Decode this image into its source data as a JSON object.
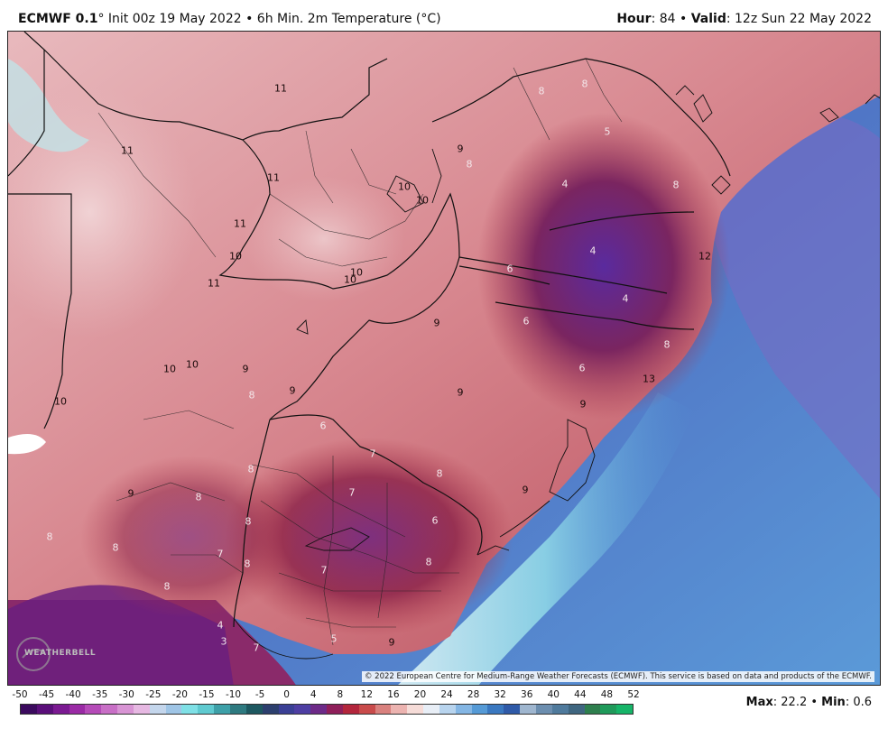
{
  "header": {
    "model": "ECMWF 0.1",
    "degree_symbol": "°",
    "init_text": " Init 00z 19 May 2022 • 6h Min. 2m Temperature (°C)",
    "hour_label": "Hour",
    "hour_value": ": 84 • ",
    "valid_label": "Valid",
    "valid_value": ": 12z Sun 22 May 2022"
  },
  "map": {
    "copyright": "© 2022 European Centre for Medium-Range Weather Forecasts (ECMWF). This service is based on data and products of the ECMWF.",
    "logo_text": "WEATHERBELL",
    "labels": [
      {
        "text": "11",
        "tone": "dark",
        "pos": "lbl-1"
      },
      {
        "text": "11",
        "tone": "dark",
        "pos": "lbl-2"
      },
      {
        "text": "11",
        "tone": "dark",
        "pos": "lbl-3"
      },
      {
        "text": "11",
        "tone": "dark",
        "pos": "lbl-4"
      },
      {
        "text": "11",
        "tone": "dark",
        "pos": "lbl-5"
      },
      {
        "text": "10",
        "tone": "dark",
        "pos": "lbl-6"
      },
      {
        "text": "10",
        "tone": "dark",
        "pos": "lbl-7"
      },
      {
        "text": "10",
        "tone": "dark",
        "pos": "lbl-8"
      },
      {
        "text": "10",
        "tone": "dark",
        "pos": "lbl-9"
      },
      {
        "text": "10",
        "tone": "dark",
        "pos": "lbl-10"
      },
      {
        "text": "10",
        "tone": "dark",
        "pos": "lbl-11"
      },
      {
        "text": "10",
        "tone": "dark",
        "pos": "lbl-12"
      },
      {
        "text": "10",
        "tone": "dark",
        "pos": "lbl-13"
      },
      {
        "text": "9",
        "tone": "dark",
        "pos": "lbl-14"
      },
      {
        "text": "9",
        "tone": "dark",
        "pos": "lbl-15"
      },
      {
        "text": "9",
        "tone": "dark",
        "pos": "lbl-16"
      },
      {
        "text": "9",
        "tone": "dark",
        "pos": "lbl-17"
      },
      {
        "text": "9",
        "tone": "dark",
        "pos": "lbl-18"
      },
      {
        "text": "9",
        "tone": "dark",
        "pos": "lbl-19"
      },
      {
        "text": "9",
        "tone": "dark",
        "pos": "lbl-20"
      },
      {
        "text": "9",
        "tone": "dark",
        "pos": "lbl-21"
      },
      {
        "text": "8",
        "tone": "light",
        "pos": "lbl-22"
      },
      {
        "text": "8",
        "tone": "light",
        "pos": "lbl-23"
      },
      {
        "text": "8",
        "tone": "light",
        "pos": "lbl-24"
      },
      {
        "text": "8",
        "tone": "light",
        "pos": "lbl-25"
      },
      {
        "text": "8",
        "tone": "light",
        "pos": "lbl-26"
      },
      {
        "text": "8",
        "tone": "light",
        "pos": "lbl-27"
      },
      {
        "text": "8",
        "tone": "light",
        "pos": "lbl-28"
      },
      {
        "text": "8",
        "tone": "light",
        "pos": "lbl-29"
      },
      {
        "text": "8",
        "tone": "light",
        "pos": "lbl-30"
      },
      {
        "text": "8",
        "tone": "light",
        "pos": "lbl-31"
      },
      {
        "text": "8",
        "tone": "light",
        "pos": "lbl-32"
      },
      {
        "text": "8",
        "tone": "light",
        "pos": "lbl-33"
      },
      {
        "text": "8",
        "tone": "light",
        "pos": "lbl-34"
      },
      {
        "text": "8",
        "tone": "light",
        "pos": "lbl-35"
      },
      {
        "text": "8",
        "tone": "light",
        "pos": "lbl-36"
      },
      {
        "text": "7",
        "tone": "light",
        "pos": "lbl-37"
      },
      {
        "text": "7",
        "tone": "light",
        "pos": "lbl-38"
      },
      {
        "text": "7",
        "tone": "light",
        "pos": "lbl-39"
      },
      {
        "text": "7",
        "tone": "light",
        "pos": "lbl-40"
      },
      {
        "text": "7",
        "tone": "light",
        "pos": "lbl-41"
      },
      {
        "text": "6",
        "tone": "light",
        "pos": "lbl-42"
      },
      {
        "text": "6",
        "tone": "light",
        "pos": "lbl-43"
      },
      {
        "text": "6",
        "tone": "light",
        "pos": "lbl-44"
      },
      {
        "text": "6",
        "tone": "light",
        "pos": "lbl-45"
      },
      {
        "text": "6",
        "tone": "light",
        "pos": "lbl-46"
      },
      {
        "text": "5",
        "tone": "light",
        "pos": "lbl-47"
      },
      {
        "text": "5",
        "tone": "light",
        "pos": "lbl-48"
      },
      {
        "text": "4",
        "tone": "light",
        "pos": "lbl-49"
      },
      {
        "text": "4",
        "tone": "light",
        "pos": "lbl-50"
      },
      {
        "text": "4",
        "tone": "light",
        "pos": "lbl-51"
      },
      {
        "text": "4",
        "tone": "light",
        "pos": "lbl-52"
      },
      {
        "text": "3",
        "tone": "light",
        "pos": "lbl-53"
      },
      {
        "text": "13",
        "tone": "dark",
        "pos": "lbl-54"
      },
      {
        "text": "12",
        "tone": "dark",
        "pos": "lbl-55"
      },
      {
        "text": "9",
        "tone": "dark",
        "pos": "lbl-56"
      }
    ]
  },
  "colorbar": {
    "ticks": [
      "-50",
      "-45",
      "-40",
      "-35",
      "-30",
      "-25",
      "-20",
      "-15",
      "-10",
      "-5",
      "0",
      "4",
      "8",
      "12",
      "16",
      "20",
      "24",
      "28",
      "32",
      "36",
      "40",
      "44",
      "48",
      "52"
    ],
    "colors": [
      "#3b0a5e",
      "#5a0f7a",
      "#7b1a92",
      "#9a2aa5",
      "#b54bb8",
      "#c86fc6",
      "#d894d4",
      "#e6b8e2",
      "#c4d6ec",
      "#9fc5e6",
      "#7fe0e6",
      "#5fcad0",
      "#3da0a8",
      "#2e7a80",
      "#1d5860",
      "#2c3f6e",
      "#3a3f95",
      "#4e3ea3",
      "#6d2a88",
      "#8f1f5a",
      "#b3263c",
      "#c94b4b",
      "#d9817e",
      "#ecb3b0",
      "#f6dcd8",
      "#e8eef6",
      "#b8d4ee",
      "#84b6e4",
      "#559ad6",
      "#3a78c0",
      "#2f5aa8",
      "#9fb6cf",
      "#6c8eaf",
      "#4f7a9c",
      "#3f6680",
      "#2e7f4e",
      "#1f9a5a",
      "#16b468"
    ]
  },
  "stats": {
    "max_label": "Max",
    "max_value": ": 22.2 • ",
    "min_label": "Min",
    "min_value": ": 0.6"
  }
}
